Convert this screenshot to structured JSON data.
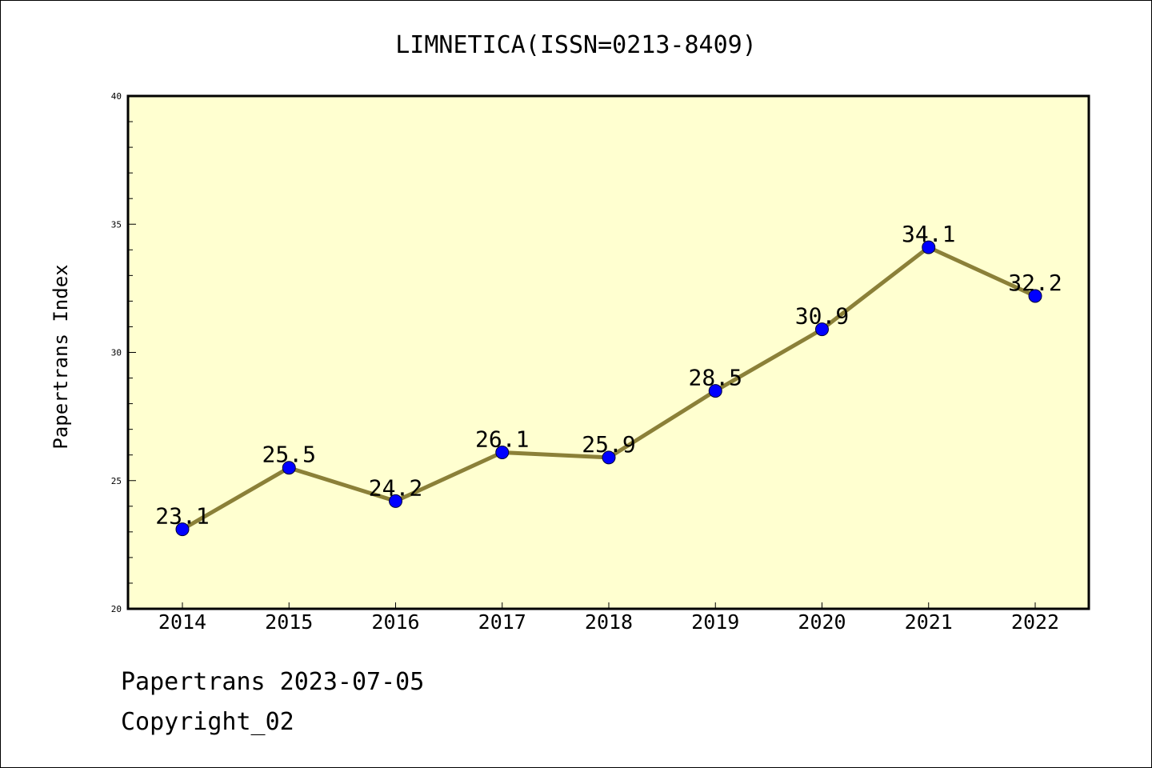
{
  "chart_data": {
    "type": "line",
    "title": "LIMNETICA(ISSN=0213-8409)",
    "xlabel": "",
    "ylabel": "Papertrans Index",
    "categories": [
      "2014",
      "2015",
      "2016",
      "2017",
      "2018",
      "2019",
      "2020",
      "2021",
      "2022"
    ],
    "values": [
      23.1,
      25.5,
      24.2,
      26.1,
      25.9,
      28.5,
      30.9,
      34.1,
      32.2
    ],
    "data_labels": [
      "23.1",
      "25.5",
      "24.2",
      "26.1",
      "25.9",
      "28.5",
      "30.9",
      "34.1",
      "32.2"
    ],
    "ylim": [
      20,
      40
    ],
    "yticks": [
      "20",
      "25",
      "30",
      "35",
      "40"
    ],
    "ytick_values": [
      20,
      25,
      30,
      35,
      40
    ],
    "grid": false,
    "legend": "none",
    "colors": {
      "plot_background": "#ffffd0",
      "line": "#8b8038",
      "marker": "#0000ff"
    }
  },
  "footer": {
    "line1": "Papertrans 2023-07-05",
    "line2": "Copyright_02"
  }
}
